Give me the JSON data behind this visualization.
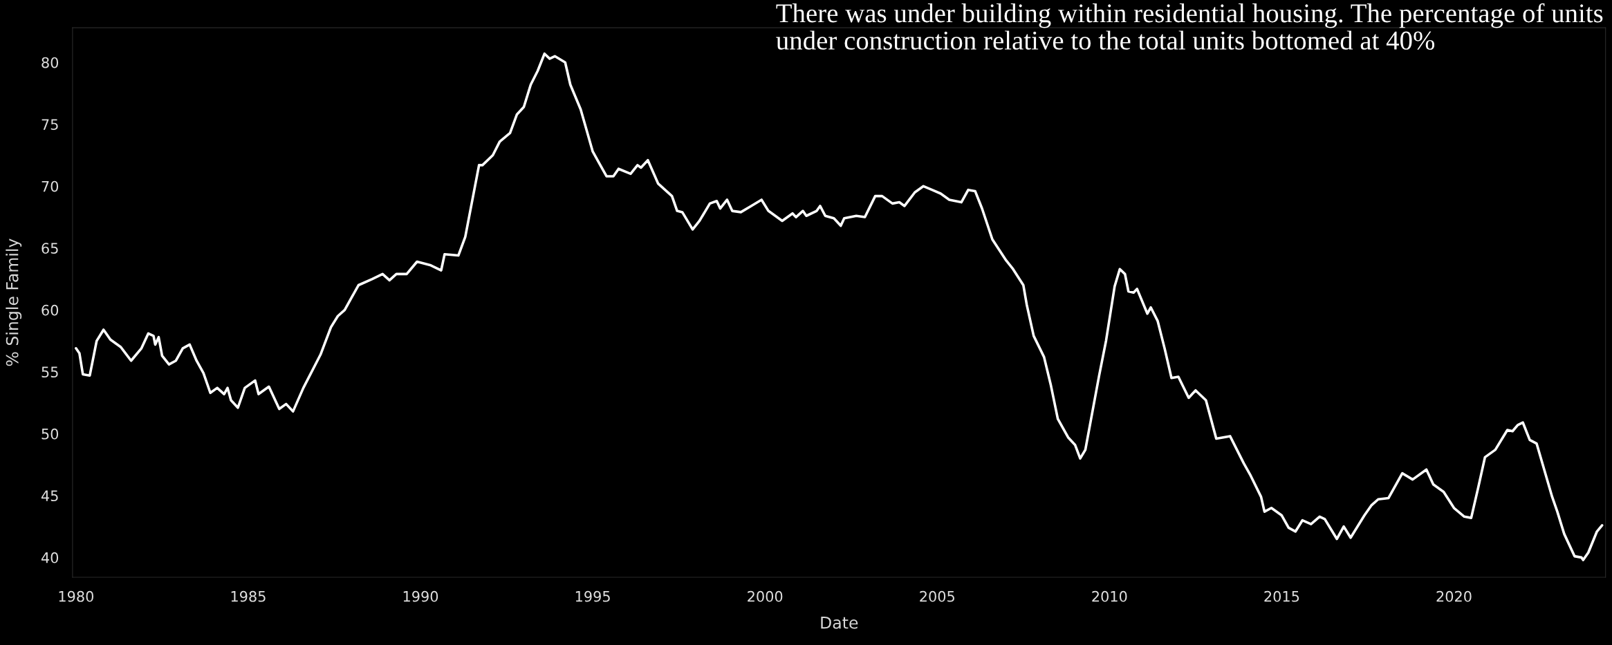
{
  "chart_data": {
    "type": "line",
    "xlabel": "Date",
    "ylabel": "% Single Family",
    "annotations": [
      "There was under building within residential housing. The percentage of units under construction relative to the total units bottomed at 40%"
    ],
    "xlim": [
      1979.9,
      2024.4
    ],
    "xticks": [
      1980,
      1985,
      1990,
      1995,
      2000,
      2005,
      2010,
      2015,
      2020
    ],
    "ylim": [
      38.4,
      82.8
    ],
    "yticks": [
      40,
      45,
      50,
      55,
      60,
      65,
      70,
      75,
      80
    ],
    "grid": false,
    "line_style": "solid",
    "marker": "none",
    "series": [
      {
        "color": "#ffffff",
        "x": [
          1980.0,
          1980.1,
          1980.2,
          1980.4,
          1980.6,
          1980.8,
          1981.0,
          1981.3,
          1981.6,
          1981.9,
          1982.1,
          1982.25,
          1982.3,
          1982.4,
          1982.5,
          1982.7,
          1982.9,
          1983.1,
          1983.3,
          1983.5,
          1983.7,
          1983.9,
          1984.1,
          1984.3,
          1984.4,
          1984.5,
          1984.7,
          1984.9,
          1985.2,
          1985.3,
          1985.6,
          1985.9,
          1986.1,
          1986.3,
          1986.6,
          1987.1,
          1987.4,
          1987.6,
          1987.8,
          1987.9,
          1988.2,
          1988.6,
          1988.9,
          1989.1,
          1989.3,
          1989.6,
          1989.9,
          1990.3,
          1990.6,
          1990.7,
          1991.1,
          1991.3,
          1991.7,
          1991.8,
          1992.1,
          1992.3,
          1992.6,
          1992.8,
          1993.0,
          1993.2,
          1993.4,
          1993.5,
          1993.6,
          1993.75,
          1993.9,
          1994.2,
          1994.35,
          1994.65,
          1995.0,
          1995.2,
          1995.4,
          1995.6,
          1995.75,
          1996.1,
          1996.3,
          1996.4,
          1996.6,
          1996.9,
          1997.1,
          1997.3,
          1997.45,
          1997.6,
          1997.9,
          1998.1,
          1998.4,
          1998.6,
          1998.7,
          1998.9,
          1999.05,
          1999.3,
          1999.6,
          1999.9,
          2000.1,
          2000.5,
          2000.8,
          2000.9,
          2001.1,
          2001.2,
          2001.5,
          2001.6,
          2001.75,
          2002.0,
          2002.2,
          2002.3,
          2002.65,
          2002.9,
          2003.2,
          2003.4,
          2003.7,
          2003.9,
          2004.05,
          2004.35,
          2004.6,
          2004.85,
          2005.1,
          2005.35,
          2005.7,
          2005.9,
          2006.1,
          2006.3,
          2006.6,
          2007.0,
          2007.2,
          2007.5,
          2007.6,
          2007.8,
          2008.1,
          2008.3,
          2008.5,
          2008.8,
          2009.0,
          2009.15,
          2009.3,
          2009.7,
          2009.9,
          2010.15,
          2010.3,
          2010.45,
          2010.55,
          2010.7,
          2010.8,
          2011.1,
          2011.2,
          2011.4,
          2011.6,
          2011.8,
          2012.0,
          2012.3,
          2012.4,
          2012.5,
          2012.8,
          2013.1,
          2013.3,
          2013.5,
          2013.7,
          2013.9,
          2014.1,
          2014.4,
          2014.5,
          2014.7,
          2015.0,
          2015.2,
          2015.4,
          2015.6,
          2015.85,
          2016.1,
          2016.25,
          2016.6,
          2016.8,
          2017.0,
          2017.4,
          2017.6,
          2017.8,
          2018.1,
          2018.5,
          2018.8,
          2019.2,
          2019.4,
          2019.7,
          2020.0,
          2020.3,
          2020.5,
          2020.7,
          2020.9,
          2021.2,
          2021.55,
          2021.7,
          2021.85,
          2022.0,
          2022.2,
          2022.4,
          2022.85,
          2023.0,
          2023.2,
          2023.5,
          2023.7,
          2023.75,
          2023.9,
          2024.15,
          2024.3
        ],
        "values": [
          56.9,
          56.5,
          54.8,
          54.7,
          57.5,
          58.4,
          57.6,
          57.0,
          55.9,
          56.9,
          58.1,
          57.9,
          57.2,
          57.8,
          56.3,
          55.6,
          55.9,
          56.9,
          57.2,
          55.9,
          54.9,
          53.3,
          53.7,
          53.2,
          53.7,
          52.7,
          52.1,
          53.7,
          54.3,
          53.2,
          53.8,
          52.0,
          52.4,
          51.8,
          53.7,
          56.4,
          58.6,
          59.5,
          60.0,
          60.5,
          62.0,
          62.5,
          62.9,
          62.4,
          62.9,
          62.9,
          63.9,
          63.6,
          63.2,
          64.5,
          64.4,
          65.9,
          71.7,
          71.7,
          72.5,
          73.6,
          74.3,
          75.8,
          76.4,
          78.2,
          79.3,
          80.0,
          80.7,
          80.3,
          80.5,
          80.0,
          78.2,
          76.2,
          72.8,
          71.8,
          70.8,
          70.8,
          71.4,
          71.0,
          71.7,
          71.5,
          72.1,
          70.2,
          69.7,
          69.2,
          68.0,
          67.9,
          66.5,
          67.2,
          68.6,
          68.8,
          68.2,
          68.9,
          68.0,
          67.9,
          68.4,
          68.9,
          68.0,
          67.2,
          67.8,
          67.5,
          68.0,
          67.6,
          68.0,
          68.4,
          67.6,
          67.4,
          66.8,
          67.4,
          67.6,
          67.5,
          69.2,
          69.2,
          68.6,
          68.7,
          68.4,
          69.5,
          70.0,
          69.7,
          69.4,
          68.9,
          68.7,
          69.7,
          69.6,
          68.2,
          65.7,
          64.0,
          63.3,
          62.0,
          60.4,
          57.9,
          56.2,
          53.9,
          51.2,
          49.7,
          49.1,
          48.0,
          48.7,
          54.7,
          57.5,
          61.9,
          63.3,
          62.9,
          61.5,
          61.4,
          61.7,
          59.7,
          60.2,
          59.1,
          56.9,
          54.5,
          54.6,
          52.9,
          53.2,
          53.5,
          52.7,
          49.6,
          49.7,
          49.8,
          48.7,
          47.6,
          46.6,
          44.9,
          43.7,
          44.0,
          43.4,
          42.4,
          42.1,
          43.0,
          42.7,
          43.3,
          43.1,
          41.5,
          42.5,
          41.6,
          43.4,
          44.2,
          44.7,
          44.8,
          46.8,
          46.3,
          47.1,
          45.9,
          45.3,
          44.0,
          43.3,
          43.2,
          45.6,
          48.1,
          48.7,
          50.3,
          50.2,
          50.7,
          50.9,
          49.5,
          49.2,
          44.9,
          43.7,
          41.9,
          40.1,
          40.0,
          39.8,
          40.4,
          42.1,
          42.6
        ]
      }
    ]
  }
}
